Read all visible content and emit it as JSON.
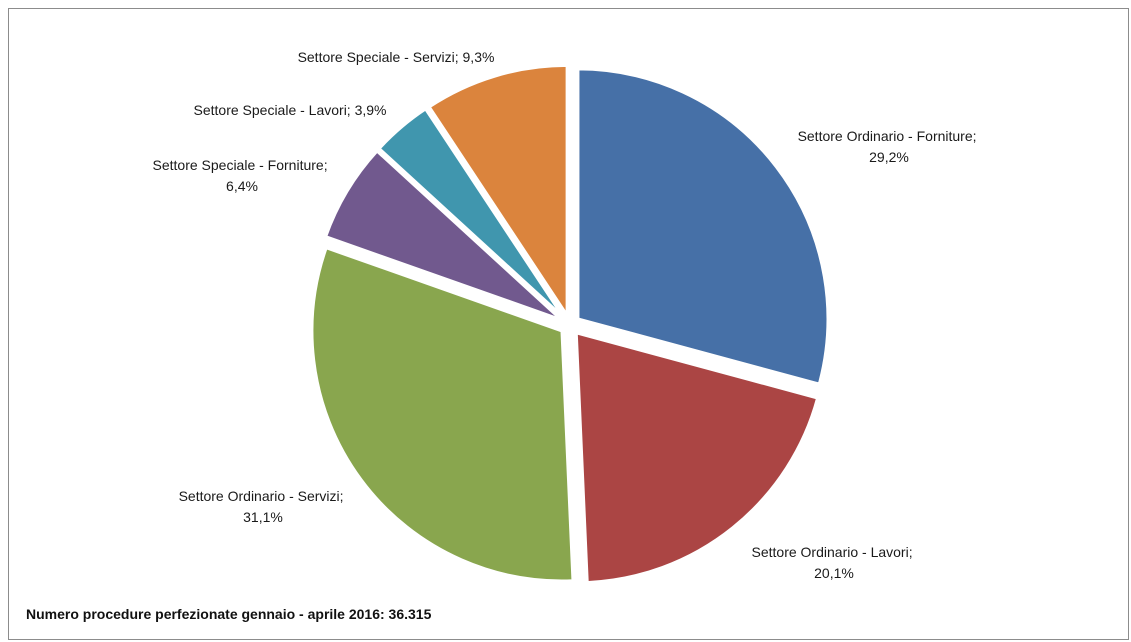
{
  "chart_data": {
    "type": "pie",
    "title": "",
    "slices": [
      {
        "label_line1": "Settore Ordinario - Forniture;",
        "label_line2": "29,2%",
        "value": 29.2,
        "color": "#4670a7"
      },
      {
        "label_line1": "Settore Ordinario - Lavori;",
        "label_line2": "20,1%",
        "value": 20.1,
        "color": "#ab4544"
      },
      {
        "label_line1": "Settore Ordinario - Servizi;",
        "label_line2": "31,1%",
        "value": 31.1,
        "color": "#89a64e"
      },
      {
        "label_line1": "Settore Speciale - Forniture;",
        "label_line2": "6,4%",
        "value": 6.4,
        "color": "#71598e"
      },
      {
        "label_line1": "Settore Speciale - Lavori; 3,9%",
        "label_line2": "",
        "value": 3.9,
        "color": "#4096ae"
      },
      {
        "label_line1": "Settore Speciale - Servizi; 9,3%",
        "label_line2": "",
        "value": 9.3,
        "color": "#db843d"
      }
    ],
    "legend": "none",
    "start": "12 o'clock, clockwise"
  },
  "footer": {
    "text": "Numero procedure perfezionate gennaio - aprile 2016:  36.315"
  }
}
